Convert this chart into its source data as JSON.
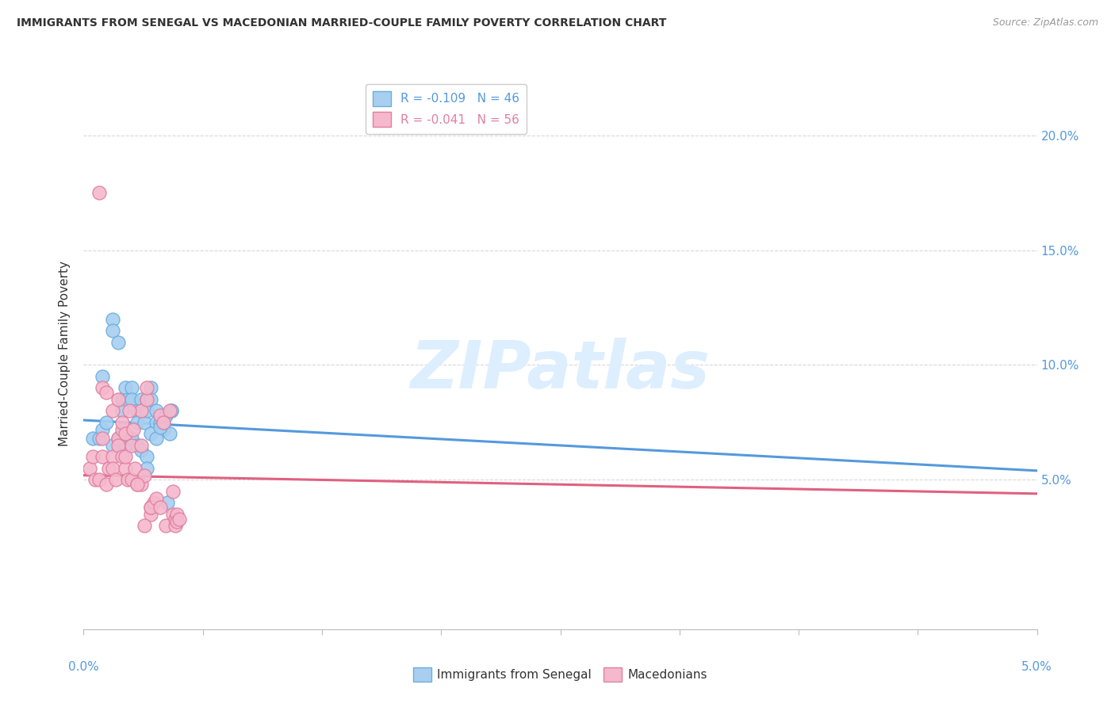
{
  "title": "IMMIGRANTS FROM SENEGAL VS MACEDONIAN MARRIED-COUPLE FAMILY POVERTY CORRELATION CHART",
  "source": "Source: ZipAtlas.com",
  "ylabel": "Married-Couple Family Poverty",
  "xlim": [
    0.0,
    0.05
  ],
  "ylim": [
    -0.015,
    0.225
  ],
  "right_yticks": [
    0.05,
    0.1,
    0.15,
    0.2
  ],
  "right_yticklabels": [
    "5.0%",
    "10.0%",
    "15.0%",
    "20.0%"
  ],
  "watermark_text": "ZIPatlas",
  "series1_color": "#a8cff0",
  "series1_edge": "#6aaee0",
  "series2_color": "#f5b8cc",
  "series2_edge": "#e080a0",
  "trendline1_color": "#5599dd",
  "trendline2_color": "#e06080",
  "blue_r": "-0.109",
  "blue_n": "46",
  "pink_r": "-0.041",
  "pink_n": "56",
  "blue_points_x": [
    0.001,
    0.0015,
    0.0015,
    0.0018,
    0.002,
    0.002,
    0.0022,
    0.0023,
    0.0025,
    0.0025,
    0.0028,
    0.0028,
    0.003,
    0.003,
    0.0032,
    0.0033,
    0.0033,
    0.0035,
    0.0035,
    0.0038,
    0.0038,
    0.004,
    0.0042,
    0.0043,
    0.0045,
    0.0046,
    0.0005,
    0.0008,
    0.001,
    0.0012,
    0.0015,
    0.0018,
    0.002,
    0.0022,
    0.0025,
    0.0028,
    0.003,
    0.0033,
    0.0033,
    0.0035,
    0.0038,
    0.004,
    0.0042,
    0.0043,
    0.0044,
    0.0046
  ],
  "blue_points_y": [
    0.095,
    0.12,
    0.115,
    0.11,
    0.085,
    0.08,
    0.09,
    0.085,
    0.09,
    0.085,
    0.08,
    0.075,
    0.085,
    0.08,
    0.075,
    0.085,
    0.08,
    0.09,
    0.085,
    0.075,
    0.08,
    0.075,
    0.072,
    0.078,
    0.07,
    0.08,
    0.068,
    0.068,
    0.072,
    0.075,
    0.065,
    0.068,
    0.07,
    0.065,
    0.068,
    0.065,
    0.063,
    0.06,
    0.055,
    0.07,
    0.068,
    0.073,
    0.075,
    0.078,
    0.04,
    0.08
  ],
  "pink_points_x": [
    0.0003,
    0.0005,
    0.0006,
    0.0008,
    0.001,
    0.001,
    0.0012,
    0.0013,
    0.0015,
    0.0015,
    0.0017,
    0.0018,
    0.0018,
    0.002,
    0.002,
    0.0022,
    0.0022,
    0.0023,
    0.0025,
    0.0025,
    0.0027,
    0.0028,
    0.003,
    0.003,
    0.0032,
    0.0033,
    0.0033,
    0.0035,
    0.0035,
    0.0037,
    0.0008,
    0.001,
    0.0012,
    0.0015,
    0.0018,
    0.002,
    0.0022,
    0.0024,
    0.0026,
    0.0028,
    0.003,
    0.0032,
    0.0035,
    0.0038,
    0.004,
    0.004,
    0.0042,
    0.0043,
    0.0045,
    0.0047,
    0.0047,
    0.0048,
    0.0048,
    0.0049,
    0.0049,
    0.005
  ],
  "pink_points_y": [
    0.055,
    0.06,
    0.05,
    0.05,
    0.068,
    0.06,
    0.048,
    0.055,
    0.06,
    0.055,
    0.05,
    0.068,
    0.065,
    0.06,
    0.072,
    0.055,
    0.06,
    0.05,
    0.065,
    0.05,
    0.055,
    0.048,
    0.048,
    0.08,
    0.052,
    0.085,
    0.09,
    0.035,
    0.038,
    0.04,
    0.175,
    0.09,
    0.088,
    0.08,
    0.085,
    0.075,
    0.07,
    0.08,
    0.072,
    0.048,
    0.065,
    0.03,
    0.038,
    0.042,
    0.038,
    0.078,
    0.075,
    0.03,
    0.08,
    0.045,
    0.035,
    0.03,
    0.033,
    0.035,
    0.032,
    0.033
  ],
  "trendline1_x": [
    0.0,
    0.05
  ],
  "trendline1_y": [
    0.076,
    0.054
  ],
  "trendline2_x": [
    0.0,
    0.05
  ],
  "trendline2_y": [
    0.052,
    0.044
  ],
  "grid_color": "#d8d8d8",
  "bg_color": "#ffffff",
  "accent_color": "#5599dd",
  "text_color": "#333333"
}
